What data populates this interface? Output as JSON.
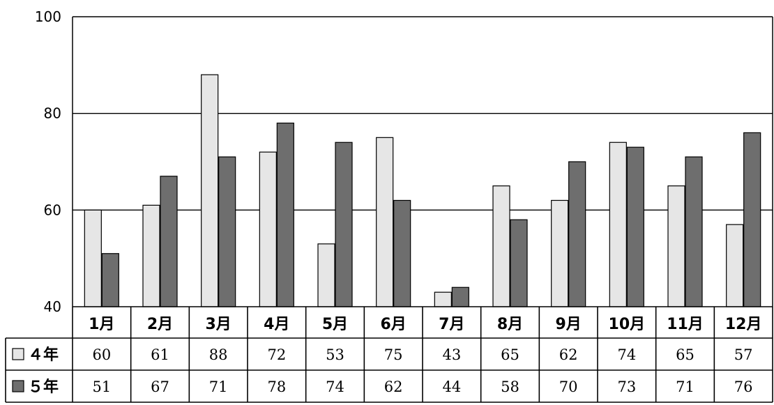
{
  "chart_data": {
    "type": "bar",
    "title": "",
    "xlabel": "",
    "ylabel": "",
    "ylim": [
      40,
      100
    ],
    "yticks": [
      40,
      60,
      80,
      100
    ],
    "grid": true,
    "categories": [
      "1月",
      "2月",
      "3月",
      "4月",
      "5月",
      "6月",
      "7月",
      "8月",
      "9月",
      "10月",
      "11月",
      "12月"
    ],
    "series": [
      {
        "name": "４年",
        "color": "#e6e6e6",
        "values": [
          60,
          61,
          88,
          72,
          53,
          75,
          43,
          65,
          62,
          74,
          65,
          57
        ]
      },
      {
        "name": "５年",
        "color": "#6e6e6e",
        "values": [
          51,
          67,
          71,
          78,
          74,
          62,
          44,
          58,
          70,
          73,
          71,
          76
        ]
      }
    ]
  }
}
